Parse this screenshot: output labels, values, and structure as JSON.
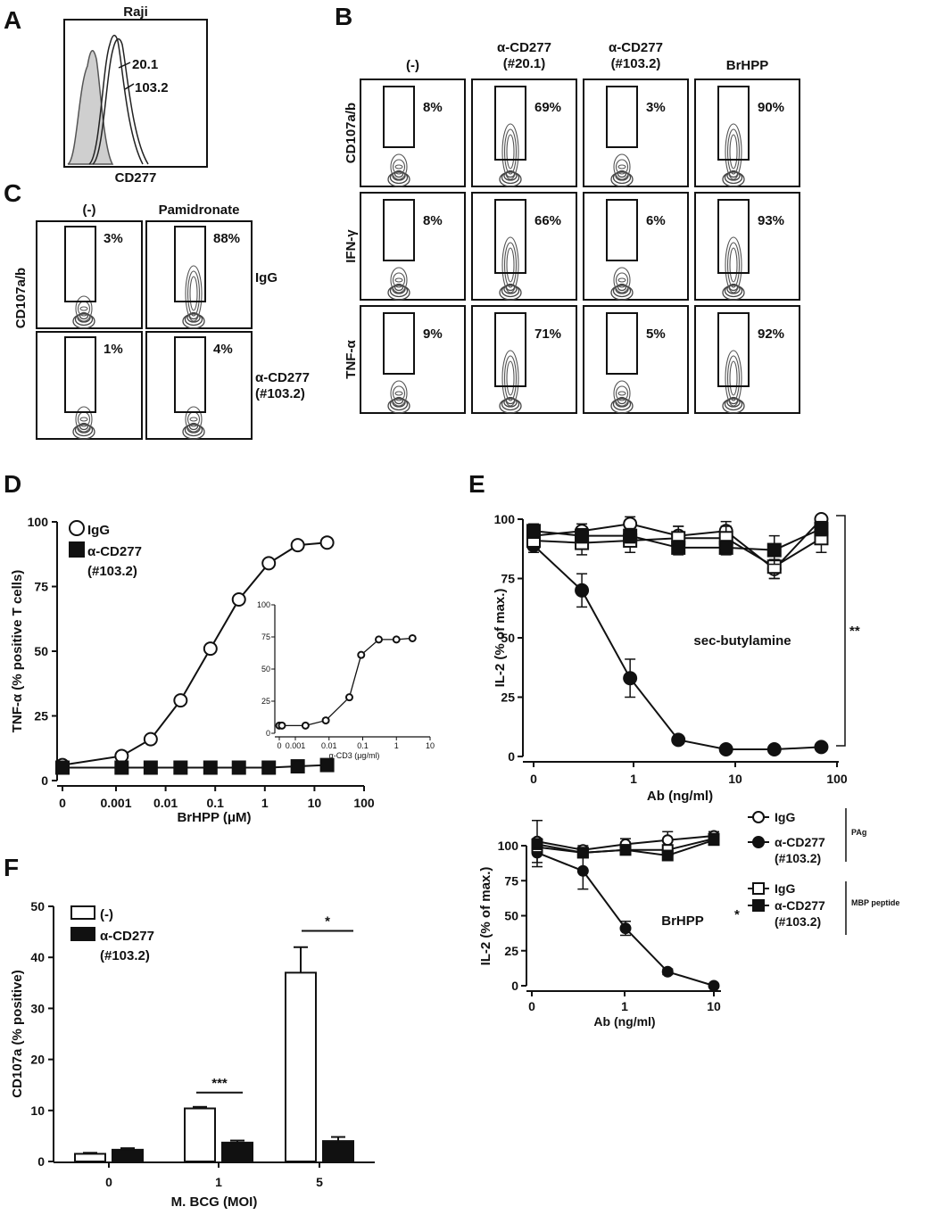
{
  "panels": {
    "A": {
      "letter": "A",
      "title": "Raji",
      "xlabel": "CD277",
      "curves": [
        {
          "label": "20.1"
        },
        {
          "label": "103.2"
        }
      ]
    },
    "B": {
      "letter": "B",
      "cols": [
        "(-)",
        "α-CD277\n(#20.1)",
        "α-CD277\n(#103.2)",
        "BrHPP"
      ],
      "rows": [
        "CD107a/b",
        "IFN-γ",
        "TNF-α"
      ],
      "values": [
        [
          "8%",
          "69%",
          "3%",
          "90%"
        ],
        [
          "8%",
          "66%",
          "6%",
          "93%"
        ],
        [
          "9%",
          "71%",
          "5%",
          "92%"
        ]
      ]
    },
    "C": {
      "letter": "C",
      "cols": [
        "(-)",
        "Pamidronate"
      ],
      "ylabel": "CD107a/b",
      "rows": [
        "IgG",
        "α-CD277\n(#103.2)"
      ],
      "values": [
        [
          "3%",
          "88%"
        ],
        [
          "1%",
          "4%"
        ]
      ]
    }
  },
  "chart_data": [
    {
      "id": "D",
      "letter": "D",
      "type": "line",
      "scale_x": "log",
      "xlim": [
        0,
        100
      ],
      "ylim": [
        0,
        100
      ],
      "xlabel": "BrHPP (μM)",
      "ylabel": "TNF-α (% positive T cells)",
      "xticks": [
        "0",
        "0.001",
        "0.01",
        "0.1",
        "1",
        "10",
        "100"
      ],
      "yticks": [
        "0",
        "25",
        "50",
        "75",
        "100"
      ],
      "series": [
        {
          "name": "IgG",
          "marker": "open-circle",
          "x": [
            0,
            0.0013,
            0.005,
            0.02,
            0.08,
            0.3,
            1.2,
            4.6,
            18
          ],
          "y": [
            6,
            9.5,
            16,
            31,
            51,
            70,
            84,
            91,
            92
          ]
        },
        {
          "name": "α-CD277\n(#103.2)",
          "marker": "filled-square",
          "x": [
            0,
            0.0013,
            0.005,
            0.02,
            0.08,
            0.3,
            1.2,
            4.6,
            18
          ],
          "y": [
            5,
            5,
            5,
            5,
            5,
            5,
            5,
            5.5,
            6
          ]
        }
      ],
      "inset": {
        "xlabel": "α-CD3 (μg/ml)",
        "scale_x": "log",
        "xlim": [
          0,
          10
        ],
        "ylim": [
          0,
          100
        ],
        "xticks": [
          "0",
          "0.001",
          "0.01",
          "0.1",
          "1",
          "10"
        ],
        "yticks": [
          "0",
          "25",
          "50",
          "75",
          "100"
        ],
        "series": [
          {
            "marker": "open-circle",
            "x": [
              0,
              0.0004,
              0.002,
              0.008,
              0.04,
              0.09,
              0.3,
              1,
              3
            ],
            "y": [
              6,
              6,
              6,
              10,
              28,
              61,
              73,
              73,
              74
            ]
          }
        ]
      }
    },
    {
      "id": "E_top",
      "letter": "E",
      "type": "line",
      "scale_x": "log",
      "xlim": [
        0,
        100
      ],
      "ylim": [
        0,
        100
      ],
      "xlabel": "Ab (ng/ml)",
      "ylabel": "IL-2 (% of max.)",
      "annotation": "sec-butylamine",
      "significance": "**",
      "xticks": [
        "0",
        "1",
        "10",
        "100"
      ],
      "yticks": [
        "0",
        "25",
        "50",
        "75",
        "100"
      ],
      "series": [
        {
          "name": "IgG (PAg)",
          "marker": "open-circle",
          "x": [
            0,
            0.3,
            0.9,
            2.7,
            8,
            24,
            70
          ],
          "y": [
            93,
            95,
            98,
            93,
            95,
            79,
            100
          ],
          "err": [
            3,
            3,
            3,
            4,
            4,
            4,
            1
          ]
        },
        {
          "name": "α-CD277 (#103.2) (PAg)",
          "marker": "filled-circle",
          "x": [
            0,
            0.3,
            0.9,
            2.7,
            8,
            24,
            70
          ],
          "y": [
            89,
            70,
            33,
            7,
            3,
            3,
            4
          ],
          "err": [
            3,
            7,
            8,
            1,
            1,
            1,
            1
          ]
        },
        {
          "name": "IgG (MBP peptide)",
          "marker": "open-square",
          "x": [
            0,
            0.3,
            0.9,
            2.7,
            8,
            24,
            70
          ],
          "y": [
            91,
            90,
            91,
            92,
            92,
            80,
            92
          ],
          "err": [
            4,
            5,
            5,
            5,
            5,
            5,
            6
          ]
        },
        {
          "name": "α-CD277 (#103.2) (MBP peptide)",
          "marker": "filled-square",
          "x": [
            0,
            0.3,
            0.9,
            2.7,
            8,
            24,
            70
          ],
          "y": [
            95,
            93,
            93,
            88,
            88,
            87,
            96
          ],
          "err": [
            3,
            3,
            3,
            3,
            3,
            6,
            3
          ]
        }
      ]
    },
    {
      "id": "E_bottom",
      "type": "line",
      "scale_x": "log",
      "xlim": [
        0,
        10
      ],
      "ylim": [
        0,
        100
      ],
      "xlabel": "Ab (ng/ml)",
      "ylabel": "IL-2 (% of max.)",
      "annotation": "BrHPP",
      "significance": "*",
      "xticks": [
        "0",
        "1",
        "10"
      ],
      "yticks": [
        "0",
        "25",
        "50",
        "75",
        "100"
      ],
      "series": [
        {
          "name": "IgG (PAg)",
          "marker": "open-circle",
          "x": [
            0,
            0.33,
            1,
            3,
            10
          ],
          "y": [
            103,
            97,
            101,
            104,
            107
          ],
          "err": [
            15,
            3,
            4,
            6,
            3
          ]
        },
        {
          "name": "α-CD277 (#103.2) (PAg)",
          "marker": "filled-circle",
          "x": [
            0,
            0.33,
            1,
            3,
            10
          ],
          "y": [
            95,
            82,
            41,
            10,
            0
          ],
          "err": [
            10,
            13,
            5,
            2,
            0
          ]
        },
        {
          "name": "IgG (MBP peptide)",
          "marker": "open-square",
          "x": [
            0,
            0.33,
            1,
            3,
            10
          ],
          "y": [
            99,
            95,
            97,
            97,
            105
          ],
          "err": [
            4,
            3,
            3,
            3,
            3
          ]
        },
        {
          "name": "α-CD277 (#103.2) (MBP peptide)",
          "marker": "filled-square",
          "x": [
            0,
            0.33,
            1,
            3,
            10
          ],
          "y": [
            101,
            95,
            97,
            93,
            104
          ],
          "err": [
            3,
            3,
            3,
            3,
            3
          ]
        }
      ],
      "legend": {
        "items": [
          {
            "marker": "open-circle",
            "label": "IgG"
          },
          {
            "marker": "filled-circle",
            "label": "α-CD277\n(#103.2)"
          },
          {
            "marker": "open-square",
            "label": "IgG"
          },
          {
            "marker": "filled-square",
            "label": "α-CD277\n(#103.2)"
          }
        ],
        "groups": [
          "PAg",
          "MBP peptide"
        ]
      }
    },
    {
      "id": "F",
      "letter": "F",
      "type": "bar",
      "ylim": [
        0,
        50
      ],
      "categories": [
        "0",
        "1",
        "5"
      ],
      "xlabel": "M. BCG (MOI)",
      "ylabel": "CD107a (% positive)",
      "yticks": [
        "0",
        "10",
        "20",
        "30",
        "40",
        "50"
      ],
      "series": [
        {
          "name": "(-)",
          "fill": "#ffffff",
          "values": [
            1.5,
            10.4,
            37
          ],
          "err": [
            0.2,
            0.3,
            5
          ]
        },
        {
          "name": "α-CD277\n(#103.2)",
          "fill": "#111111",
          "values": [
            2.3,
            3.7,
            4
          ],
          "err": [
            0.3,
            0.4,
            0.8
          ]
        }
      ],
      "significance": [
        {
          "category": "1",
          "label": "***"
        },
        {
          "category": "5",
          "label": "*"
        }
      ]
    }
  ]
}
